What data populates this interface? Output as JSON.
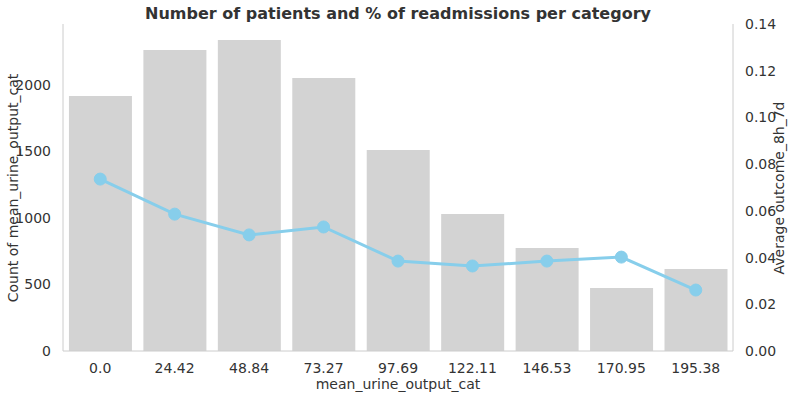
{
  "chart_data": {
    "type": "bar",
    "title": "Number of patients and % of readmissions per category",
    "x_label": "mean_urine_output_cat",
    "y_label": "Count of mean_urine_output_cat",
    "y2_label": "Average outcome_8h_7d",
    "categories": [
      "0.0",
      "24.42",
      "48.84",
      "73.27",
      "97.69",
      "122.11",
      "146.53",
      "170.95",
      "195.38"
    ],
    "series": [
      {
        "type": "bar",
        "color": "#d3d3d3",
        "values": [
          1917,
          2263,
          2338,
          2053,
          1511,
          1030,
          774,
          474,
          617
        ]
      },
      {
        "type": "line",
        "axis": "y2",
        "color": "#87ceeb",
        "marker": "circle",
        "values": [
          0.0736,
          0.0586,
          0.0497,
          0.0531,
          0.0385,
          0.0364,
          0.0385,
          0.0402,
          0.0261
        ]
      }
    ],
    "ylim": [
      0,
      2459
    ],
    "yticks": [
      0,
      500,
      1000,
      1500,
      2000
    ],
    "y2lim": [
      0,
      0.14
    ],
    "y2ticks": [
      {
        "value": 0,
        "label": "0.00"
      },
      {
        "value": 0.02,
        "label": "0.02"
      },
      {
        "value": 0.04,
        "label": "0.04"
      },
      {
        "value": 0.06,
        "label": "0.06"
      },
      {
        "value": 0.08,
        "label": "0.08"
      },
      {
        "value": 0.1,
        "label": "0.10"
      },
      {
        "value": 0.12,
        "label": "0.12"
      },
      {
        "value": 0.14,
        "label": "0.14"
      }
    ],
    "grid": false
  }
}
